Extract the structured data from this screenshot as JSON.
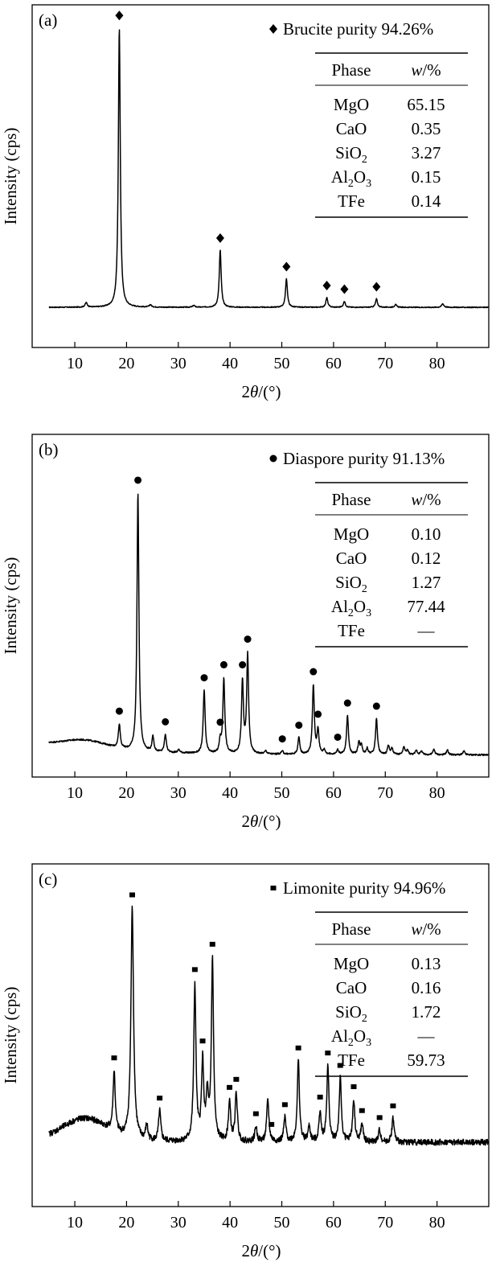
{
  "chart_data": [
    {
      "type": "line",
      "panel_label": "(a)",
      "legend": {
        "marker": "diamond",
        "text": "Brucite purity 94.26%"
      },
      "ylabel": "Intensity (cps)",
      "xlabel_prefix": "2",
      "xlabel_var": "θ",
      "xlabel_suffix": "/(°)",
      "xlim": [
        3,
        90
      ],
      "xticks": [
        10,
        20,
        30,
        40,
        50,
        60,
        70,
        80
      ],
      "ylim": [
        0,
        100
      ],
      "baseline_start": 8,
      "baseline_end": 8,
      "baseline_peak": 0,
      "noise": 0.3,
      "peaks": [
        {
          "x": 12.2,
          "h": 1.5,
          "w": 0.25
        },
        {
          "x": 18.6,
          "h": 93,
          "w": 0.22
        },
        {
          "x": 24.6,
          "h": 0.8,
          "w": 0.25
        },
        {
          "x": 33.0,
          "h": 0.6,
          "w": 0.25
        },
        {
          "x": 38.1,
          "h": 19,
          "w": 0.22
        },
        {
          "x": 50.9,
          "h": 9.5,
          "w": 0.22
        },
        {
          "x": 58.7,
          "h": 3.2,
          "w": 0.22
        },
        {
          "x": 62.1,
          "h": 2.0,
          "w": 0.22
        },
        {
          "x": 68.3,
          "h": 2.8,
          "w": 0.22
        },
        {
          "x": 72.0,
          "h": 0.9,
          "w": 0.25
        },
        {
          "x": 81.1,
          "h": 1.2,
          "w": 0.25
        }
      ],
      "markers": [
        18.6,
        38.1,
        50.9,
        58.7,
        62.1,
        68.3
      ],
      "table": {
        "headers": [
          "Phase",
          "w/%"
        ],
        "rows": [
          {
            "main": "MgO",
            "sub": [],
            "value": "65.15"
          },
          {
            "main": "CaO",
            "sub": [],
            "value": "0.35"
          },
          {
            "main": "SiO",
            "sub": [
              "2"
            ],
            "value": "3.27"
          },
          {
            "main": "Al",
            "sub": [
              "2",
              "O",
              "3"
            ],
            "value": "0.15"
          },
          {
            "main": "TFe",
            "sub": [],
            "value": "0.14"
          }
        ]
      }
    },
    {
      "type": "line",
      "panel_label": "(b)",
      "legend": {
        "marker": "circle",
        "text": "Diaspore purity 91.13%"
      },
      "ylabel": "Intensity (cps)",
      "xlabel_prefix": "2",
      "xlabel_var": "θ",
      "xlabel_suffix": "/(°)",
      "xlim": [
        3,
        90
      ],
      "xticks": [
        10,
        20,
        30,
        40,
        50,
        60,
        70,
        80
      ],
      "ylim": [
        0,
        100
      ],
      "baseline_start": 6,
      "baseline_end": 2,
      "baseline_peak": 8,
      "noise": 0.5,
      "peaks": [
        {
          "x": 18.6,
          "h": 8,
          "w": 0.22
        },
        {
          "x": 22.2,
          "h": 86,
          "w": 0.22
        },
        {
          "x": 25.1,
          "h": 5,
          "w": 0.22
        },
        {
          "x": 27.5,
          "h": 6,
          "w": 0.22
        },
        {
          "x": 30.1,
          "h": 1,
          "w": 0.25
        },
        {
          "x": 35.0,
          "h": 21,
          "w": 0.22
        },
        {
          "x": 38.1,
          "h": 4,
          "w": 0.22
        },
        {
          "x": 38.8,
          "h": 25,
          "w": 0.22
        },
        {
          "x": 42.4,
          "h": 24,
          "w": 0.22
        },
        {
          "x": 43.4,
          "h": 33,
          "w": 0.22
        },
        {
          "x": 46.9,
          "h": 1,
          "w": 0.25
        },
        {
          "x": 50.1,
          "h": 1,
          "w": 0.25
        },
        {
          "x": 53.3,
          "h": 5.5,
          "w": 0.22
        },
        {
          "x": 56.1,
          "h": 23,
          "w": 0.22
        },
        {
          "x": 57.0,
          "h": 8,
          "w": 0.22
        },
        {
          "x": 58.2,
          "h": 1.5,
          "w": 0.22
        },
        {
          "x": 60.8,
          "h": 1.5,
          "w": 0.22
        },
        {
          "x": 62.7,
          "h": 13,
          "w": 0.22
        },
        {
          "x": 64.9,
          "h": 4,
          "w": 0.22
        },
        {
          "x": 65.4,
          "h": 3,
          "w": 0.22
        },
        {
          "x": 66.5,
          "h": 2,
          "w": 0.22
        },
        {
          "x": 68.3,
          "h": 12,
          "w": 0.22
        },
        {
          "x": 70.6,
          "h": 3,
          "w": 0.22
        },
        {
          "x": 71.3,
          "h": 2,
          "w": 0.22
        },
        {
          "x": 73.6,
          "h": 2.5,
          "w": 0.22
        },
        {
          "x": 74.3,
          "h": 1.5,
          "w": 0.22
        },
        {
          "x": 76.0,
          "h": 1.5,
          "w": 0.22
        },
        {
          "x": 77.0,
          "h": 1.2,
          "w": 0.22
        },
        {
          "x": 79.4,
          "h": 1.8,
          "w": 0.22
        },
        {
          "x": 82.0,
          "h": 1.6,
          "w": 0.22
        },
        {
          "x": 85.2,
          "h": 1.2,
          "w": 0.22
        }
      ],
      "markers": [
        18.6,
        22.2,
        27.5,
        35.0,
        38.1,
        38.8,
        42.4,
        43.4,
        50.1,
        53.3,
        56.1,
        57.0,
        60.8,
        62.7,
        68.3
      ],
      "table": {
        "headers": [
          "Phase",
          "w/%"
        ],
        "rows": [
          {
            "main": "MgO",
            "sub": [],
            "value": "0.10"
          },
          {
            "main": "CaO",
            "sub": [],
            "value": "0.12"
          },
          {
            "main": "SiO",
            "sub": [
              "2"
            ],
            "value": "1.27"
          },
          {
            "main": "Al",
            "sub": [
              "2",
              "O",
              "3"
            ],
            "value": "77.44"
          },
          {
            "main": "TFe",
            "sub": [],
            "value": "—"
          }
        ]
      }
    },
    {
      "type": "line",
      "panel_label": "(c)",
      "legend": {
        "marker": "square",
        "text": "Limonite purity 94.96%"
      },
      "ylabel": "Intensity (cps)",
      "xlabel_prefix": "2",
      "xlabel_var": "θ",
      "xlabel_suffix": "/(°)",
      "xlim": [
        3,
        90
      ],
      "xticks": [
        10,
        20,
        30,
        40,
        50,
        60,
        70,
        80
      ],
      "ylim": [
        0,
        100
      ],
      "baseline_start": 17,
      "baseline_end": 16,
      "baseline_peak": 21,
      "noise": 2.0,
      "peaks": [
        {
          "x": 17.6,
          "h": 20,
          "w": 0.25
        },
        {
          "x": 21.1,
          "h": 77,
          "w": 0.3
        },
        {
          "x": 23.9,
          "h": 5,
          "w": 0.25
        },
        {
          "x": 26.4,
          "h": 10,
          "w": 0.25
        },
        {
          "x": 33.2,
          "h": 52,
          "w": 0.25
        },
        {
          "x": 34.7,
          "h": 26,
          "w": 0.25
        },
        {
          "x": 35.6,
          "h": 14,
          "w": 0.25
        },
        {
          "x": 36.6,
          "h": 60,
          "w": 0.25
        },
        {
          "x": 39.9,
          "h": 13,
          "w": 0.25
        },
        {
          "x": 41.2,
          "h": 16,
          "w": 0.25
        },
        {
          "x": 45.0,
          "h": 5,
          "w": 0.25
        },
        {
          "x": 47.3,
          "h": 14,
          "w": 0.25
        },
        {
          "x": 50.6,
          "h": 8,
          "w": 0.25
        },
        {
          "x": 53.2,
          "h": 27,
          "w": 0.25
        },
        {
          "x": 55.3,
          "h": 5,
          "w": 0.25
        },
        {
          "x": 57.4,
          "h": 10,
          "w": 0.25
        },
        {
          "x": 58.9,
          "h": 25,
          "w": 0.25
        },
        {
          "x": 61.3,
          "h": 21,
          "w": 0.25
        },
        {
          "x": 63.9,
          "h": 14,
          "w": 0.25
        },
        {
          "x": 65.5,
          "h": 6,
          "w": 0.25
        },
        {
          "x": 68.9,
          "h": 4,
          "w": 0.25
        },
        {
          "x": 71.5,
          "h": 8,
          "w": 0.25
        }
      ],
      "markers": [
        17.6,
        21.1,
        26.4,
        33.2,
        34.7,
        36.6,
        39.9,
        41.2,
        45.0,
        48.0,
        50.6,
        53.2,
        57.4,
        58.9,
        61.3,
        63.9,
        65.5,
        68.9,
        71.5
      ],
      "table": {
        "headers": [
          "Phase",
          "w/%"
        ],
        "rows": [
          {
            "main": "MgO",
            "sub": [],
            "value": "0.13"
          },
          {
            "main": "CaO",
            "sub": [],
            "value": "0.16"
          },
          {
            "main": "SiO",
            "sub": [
              "2"
            ],
            "value": "1.72"
          },
          {
            "main": "Al",
            "sub": [
              "2",
              "O",
              "3"
            ],
            "value": "—"
          },
          {
            "main": "TFe",
            "sub": [],
            "value": "59.73"
          }
        ]
      }
    }
  ]
}
